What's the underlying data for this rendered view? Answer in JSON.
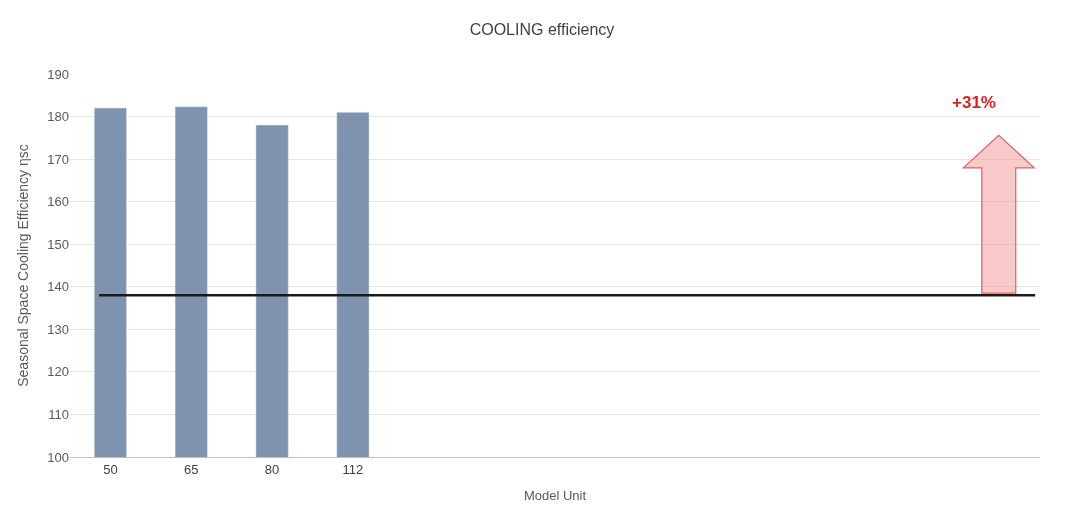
{
  "chart_data": {
    "type": "bar",
    "title": "COOLING efficiency",
    "xlabel": "Model Unit",
    "ylabel": "Seasonal Space Cooling Efficiency ηsc",
    "categories": [
      "50",
      "65",
      "80",
      "112",
      null,
      null,
      null,
      null,
      null,
      null,
      null,
      null
    ],
    "values": [
      182,
      182.3,
      178,
      181,
      null,
      null,
      null,
      null,
      null,
      null,
      null,
      null
    ],
    "color": "#7f93ae",
    "ylim": [
      100,
      190
    ],
    "yticks": [
      100,
      110,
      120,
      130,
      140,
      150,
      160,
      170,
      180,
      190
    ],
    "grid": "y",
    "ref_lines": [
      {
        "axis": "y",
        "value": 138,
        "color": "#1a1a1a",
        "line_style": "solid"
      }
    ],
    "annotations": [
      "+31%"
    ]
  }
}
